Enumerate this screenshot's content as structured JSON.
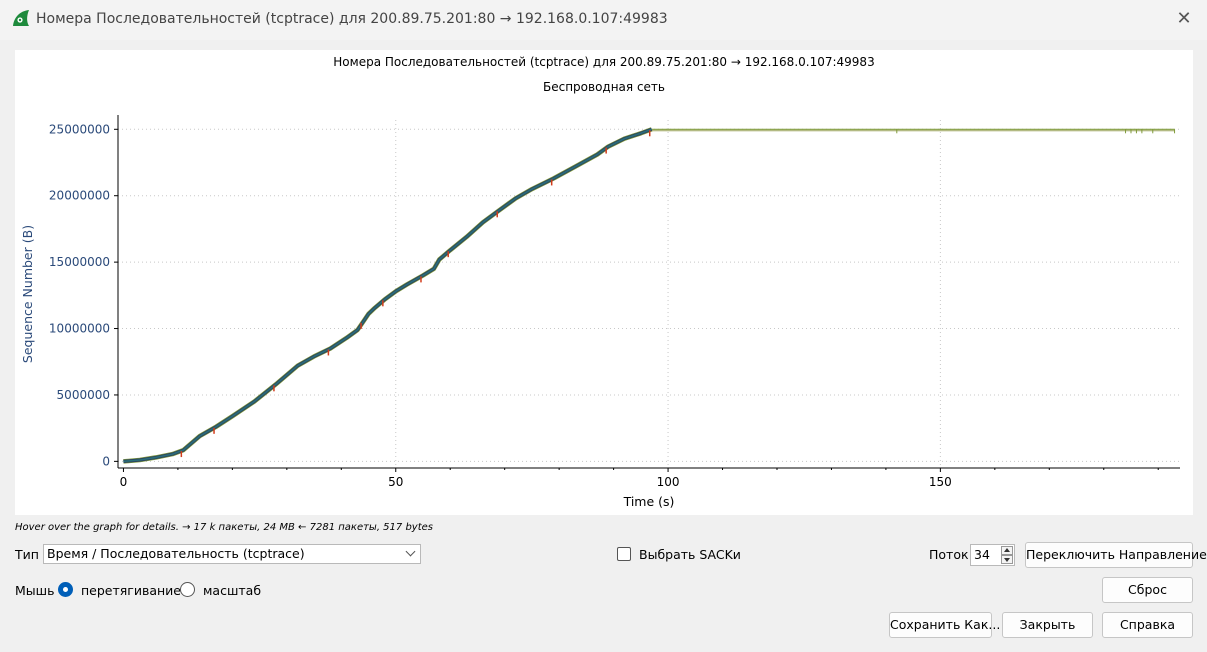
{
  "window": {
    "title": "Номера Последовательностей (tcptrace) для 200.89.75.201:80 → 192.168.0.107:49983",
    "close_glyph": "✕",
    "icon": "wireshark-fin-icon"
  },
  "plot": {
    "title": "Номера Последовательностей (tcptrace) для 200.89.75.201:80 → 192.168.0.107:49983",
    "subtitle": "Беспроводная сеть"
  },
  "chart_data": {
    "type": "line",
    "title": "Номера Последовательностей (tcptrace) для 200.89.75.201:80 → 192.168.0.107:49983",
    "subtitle": "Беспроводная сеть",
    "xlabel": "Time (s)",
    "ylabel": "Sequence Number (B)",
    "xlim": [
      -1,
      194
    ],
    "ylim": [
      -500000,
      25700000
    ],
    "xticks": [
      0,
      50,
      100,
      150
    ],
    "yticks": [
      0,
      5000000,
      10000000,
      15000000,
      20000000,
      25000000
    ],
    "grid": true,
    "colors": {
      "sequence": "#2a6f78",
      "sequence_edge": "#2b3f5f",
      "ack": "#9aa35a",
      "window": "#7f9a3a",
      "sack": "#d23c1c",
      "axis_text": "#2b4a7a"
    },
    "series": [
      {
        "x": [
          0,
          3,
          6,
          9,
          11,
          12,
          14,
          17,
          20,
          24,
          28,
          32,
          35,
          38,
          41,
          43,
          44,
          45,
          46,
          48,
          50,
          52,
          55,
          57,
          58,
          60,
          63,
          66,
          69,
          72,
          75,
          79,
          83,
          87,
          89,
          92,
          95,
          97
        ],
        "y": [
          0,
          100000,
          300000,
          550000,
          850000,
          1200000,
          1900000,
          2600000,
          3400000,
          4500000,
          5800000,
          7200000,
          7900000,
          8500000,
          9300000,
          9900000,
          10500000,
          11100000,
          11500000,
          12200000,
          12800000,
          13300000,
          14000000,
          14500000,
          15200000,
          15900000,
          16900000,
          18000000,
          18900000,
          19800000,
          20500000,
          21300000,
          22200000,
          23100000,
          23700000,
          24300000,
          24700000,
          25000000
        ]
      },
      {
        "x": [
          97,
          193
        ],
        "y": [
          25000000,
          25000000
        ]
      }
    ]
  },
  "info": {
    "hint": "Hover over the graph for details. → 17 k пакеты, 24 MB ← 7281 пакеты, 517 bytes"
  },
  "controls": {
    "type_label": "Тип",
    "type_value": "Время / Последовательность (tcptrace)",
    "sacks_label": "Выбрать SACKи",
    "stream_label": "Поток",
    "stream_value": "34",
    "switch_direction": "Переключить Направление",
    "mouse_label": "Мышь",
    "drag_label": "перетягивание",
    "zoom_label": "масштаб",
    "reset": "Сброс",
    "save_as": "Сохранить Как...",
    "close": "Закрыть",
    "help": "Справка"
  }
}
